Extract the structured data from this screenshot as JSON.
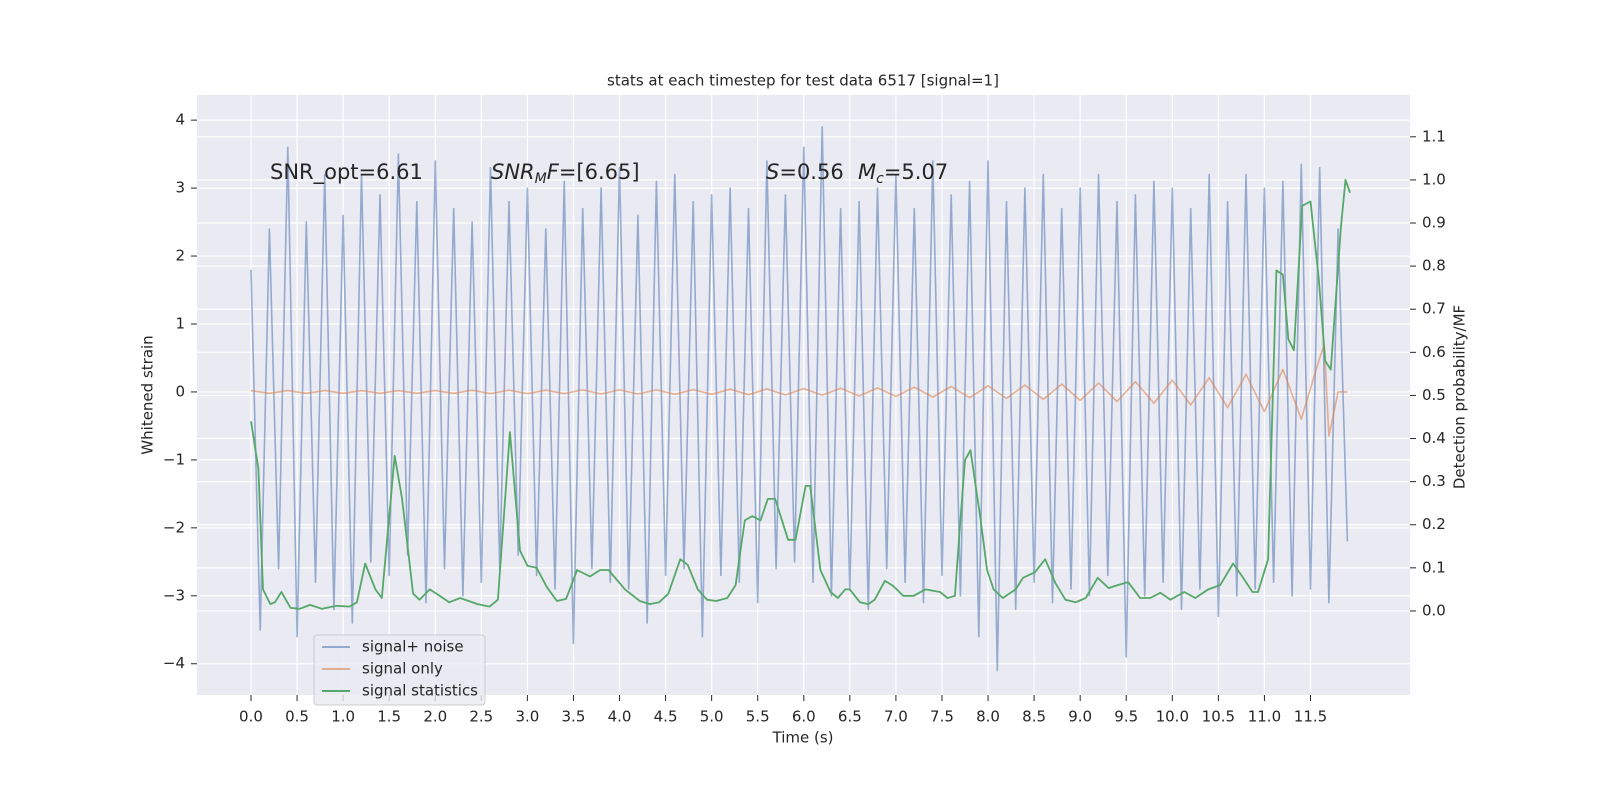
{
  "chart_data": {
    "type": "line",
    "title": "stats at each timestep for test data 6517 [signal=1]",
    "xlabel": "Time (s)",
    "ylabel": "Whitened strain",
    "y2label": "Detection probability/MF",
    "grid": true,
    "legend": "lower left",
    "annotations": [
      [
        "SNR_opt=6.61"
      ],
      [
        "SNR",
        "M",
        "F",
        "=[6.65]"
      ],
      [
        "S",
        "=0.56"
      ],
      [
        "M",
        "c",
        "=5.07"
      ]
    ],
    "xlim": [
      -0.586,
      12.58
    ],
    "ylim": [
      -4.46,
      4.37
    ],
    "y2lim": [
      -0.195,
      1.197
    ],
    "xticks": [
      {
        "value": 0,
        "label": "0.0"
      },
      0.5,
      {
        "value": 1,
        "label": "1.0"
      },
      1.5,
      {
        "value": 2,
        "label": "2.0"
      },
      2.5,
      {
        "value": 3,
        "label": "3.0"
      },
      3.5,
      {
        "value": 4,
        "label": "4.0"
      },
      4.5,
      {
        "value": 5,
        "label": "5.0"
      },
      5.5,
      {
        "value": 6,
        "label": "6.0"
      },
      6.5,
      {
        "value": 7,
        "label": "7.0"
      },
      7.5,
      {
        "value": 8,
        "label": "8.0"
      },
      8.5,
      {
        "value": 9,
        "label": "9.0"
      },
      9.5,
      {
        "value": 10,
        "label": "10.0"
      },
      10.5,
      {
        "value": 11,
        "label": "11.0"
      },
      11.5
    ],
    "yticks": [
      {
        "value": -4,
        "label": "−4"
      },
      {
        "value": -3,
        "label": "−3"
      },
      {
        "value": -2,
        "label": "−2"
      },
      {
        "value": -1,
        "label": "−1"
      },
      0,
      1,
      2,
      3,
      4
    ],
    "y2ticks": [
      {
        "value": 0,
        "label": "0.0"
      },
      0.1,
      0.2,
      0.3,
      0.4,
      0.5,
      0.6,
      0.7,
      0.8,
      0.9,
      {
        "value": 1,
        "label": "1.0"
      },
      1.1
    ],
    "series": [
      {
        "name": "signal+ noise",
        "color": "#4c72b0",
        "x": [
          0.0,
          0.1,
          0.2,
          0.3,
          0.4,
          0.5,
          0.6,
          0.7,
          0.8,
          0.9,
          1.0,
          1.1,
          1.2,
          1.3,
          1.4,
          1.5,
          1.6,
          1.7,
          1.8,
          1.9,
          2.0,
          2.1,
          2.2,
          2.3,
          2.4,
          2.5,
          2.6,
          2.7,
          2.8,
          2.9,
          3.0,
          3.1,
          3.2,
          3.3,
          3.4,
          3.5,
          3.6,
          3.7,
          3.8,
          3.9,
          4.0,
          4.1,
          4.2,
          4.3,
          4.4,
          4.5,
          4.6,
          4.7,
          4.8,
          4.9,
          5.0,
          5.1,
          5.2,
          5.3,
          5.4,
          5.5,
          5.6,
          5.7,
          5.8,
          5.9,
          6.0,
          6.1,
          6.2,
          6.3,
          6.4,
          6.5,
          6.6,
          6.7,
          6.8,
          6.9,
          7.0,
          7.1,
          7.2,
          7.3,
          7.4,
          7.5,
          7.6,
          7.7,
          7.8,
          7.9,
          8.0,
          8.1,
          8.2,
          8.3,
          8.4,
          8.5,
          8.6,
          8.7,
          8.8,
          8.9,
          9.0,
          9.1,
          9.2,
          9.3,
          9.4,
          9.5,
          9.6,
          9.7,
          9.8,
          9.9,
          10.0,
          10.1,
          10.2,
          10.3,
          10.4,
          10.5,
          10.6,
          10.7,
          10.8,
          10.9,
          11.0,
          11.1,
          11.2,
          11.3,
          11.4,
          11.5,
          11.6,
          11.7,
          11.8,
          11.9
        ],
        "values": [
          1.8,
          -3.5,
          2.4,
          -2.6,
          3.6,
          -3.6,
          2.5,
          -2.8,
          3.2,
          -3.2,
          2.6,
          -3.4,
          3.2,
          -2.5,
          2.9,
          -2.7,
          3.5,
          -2.4,
          2.8,
          -3.1,
          3.4,
          -2.6,
          2.7,
          -3.0,
          2.5,
          -2.8,
          3.3,
          -2.6,
          2.8,
          -2.4,
          3.0,
          -2.7,
          2.4,
          -2.9,
          3.1,
          -3.7,
          2.7,
          -2.6,
          3.0,
          -2.8,
          3.3,
          -2.9,
          2.6,
          -3.4,
          3.1,
          -2.7,
          3.2,
          -2.6,
          2.8,
          -3.6,
          2.9,
          -2.7,
          3.0,
          -2.8,
          2.7,
          -3.1,
          3.4,
          -2.6,
          2.9,
          -2.5,
          3.6,
          -2.8,
          3.9,
          -3.0,
          2.7,
          -2.9,
          2.8,
          -3.2,
          3.0,
          -2.6,
          3.2,
          -2.8,
          2.7,
          -3.1,
          3.4,
          -2.7,
          2.9,
          -3.0,
          3.1,
          -3.6,
          3.4,
          -4.1,
          2.8,
          -3.2,
          3.0,
          -2.8,
          3.2,
          -3.1,
          2.7,
          -2.9,
          3.0,
          -3.0,
          3.2,
          -2.7,
          2.8,
          -3.9,
          2.9,
          -3.0,
          3.1,
          -2.8,
          3.0,
          -3.2,
          2.7,
          -2.9,
          3.2,
          -3.3,
          2.8,
          -3.0,
          3.2,
          -2.9,
          3.0,
          -2.8,
          3.1,
          -3.0,
          3.35,
          -2.9,
          3.3,
          -3.1,
          2.4,
          -2.2
        ]
      },
      {
        "name": "signal only",
        "color": "#dd8452",
        "x": [
          0.0,
          0.2,
          0.4,
          0.6,
          0.8,
          1.0,
          1.2,
          1.4,
          1.6,
          1.8,
          2.0,
          2.2,
          2.4,
          2.6,
          2.8,
          3.0,
          3.2,
          3.4,
          3.6,
          3.8,
          4.0,
          4.2,
          4.4,
          4.6,
          4.8,
          5.0,
          5.2,
          5.4,
          5.6,
          5.8,
          6.0,
          6.2,
          6.4,
          6.6,
          6.8,
          7.0,
          7.2,
          7.4,
          7.6,
          7.8,
          8.0,
          8.2,
          8.4,
          8.6,
          8.8,
          9.0,
          9.2,
          9.4,
          9.6,
          9.8,
          10.0,
          10.2,
          10.4,
          10.6,
          10.8,
          11.0,
          11.2,
          11.4,
          11.6,
          11.65,
          11.7,
          11.8,
          11.9
        ],
        "values": [
          0.02,
          -0.02,
          0.02,
          -0.02,
          0.02,
          -0.02,
          0.02,
          -0.02,
          0.02,
          -0.02,
          0.02,
          -0.02,
          0.025,
          -0.025,
          0.025,
          -0.025,
          0.025,
          -0.025,
          0.03,
          -0.03,
          0.03,
          -0.03,
          0.03,
          -0.035,
          0.035,
          -0.035,
          0.04,
          -0.04,
          0.045,
          -0.045,
          0.05,
          -0.05,
          0.055,
          -0.06,
          0.06,
          -0.065,
          0.07,
          -0.075,
          0.08,
          -0.085,
          0.09,
          -0.095,
          0.1,
          -0.11,
          0.115,
          -0.125,
          0.13,
          -0.14,
          0.15,
          -0.165,
          0.175,
          -0.19,
          0.21,
          -0.23,
          0.26,
          -0.29,
          0.33,
          -0.4,
          0.5,
          0.7,
          -0.65,
          0.0,
          0.0
        ]
      },
      {
        "name": "signal statistics",
        "color": "#55a868",
        "axis": "y2",
        "x": [
          0,
          0.08,
          0.13,
          0.21,
          0.26,
          0.33,
          0.43,
          0.53,
          0.64,
          0.77,
          0.93,
          1.07,
          1.15,
          1.24,
          1.35,
          1.42,
          1.56,
          1.64,
          1.76,
          1.83,
          1.94,
          2.05,
          2.15,
          2.27,
          2.46,
          2.59,
          2.68,
          2.81,
          2.92,
          3.0,
          3.1,
          3.21,
          3.32,
          3.42,
          3.54,
          3.68,
          3.79,
          3.88,
          4.06,
          4.22,
          4.33,
          4.43,
          4.53,
          4.66,
          4.74,
          4.85,
          4.95,
          5.05,
          5.17,
          5.26,
          5.36,
          5.44,
          5.53,
          5.61,
          5.69,
          5.83,
          5.91,
          6.02,
          6.07,
          6.18,
          6.29,
          6.37,
          6.45,
          6.5,
          6.61,
          6.7,
          6.77,
          6.88,
          6.97,
          7.08,
          7.19,
          7.32,
          7.48,
          7.56,
          7.64,
          7.7,
          7.75,
          7.81,
          7.92,
          7.99,
          8.06,
          8.16,
          8.3,
          8.38,
          8.51,
          8.62,
          8.73,
          8.84,
          8.95,
          9.06,
          9.19,
          9.31,
          9.38,
          9.52,
          9.65,
          9.76,
          9.87,
          9.98,
          10.13,
          10.25,
          10.39,
          10.52,
          10.66,
          10.76,
          10.87,
          10.93,
          11.04,
          11.13,
          11.2,
          11.26,
          11.32,
          11.41,
          11.5,
          11.59,
          11.66,
          11.72,
          11.83,
          11.88,
          11.93
        ],
        "values": [
          0.44,
          0.33,
          0.05,
          0.016,
          0.02,
          0.044,
          0.007,
          0.005,
          0.014,
          0.005,
          0.012,
          0.01,
          0.02,
          0.11,
          0.05,
          0.03,
          0.36,
          0.26,
          0.04,
          0.026,
          0.05,
          0.035,
          0.02,
          0.03,
          0.016,
          0.01,
          0.026,
          0.415,
          0.14,
          0.105,
          0.1,
          0.056,
          0.023,
          0.028,
          0.095,
          0.08,
          0.095,
          0.095,
          0.05,
          0.023,
          0.016,
          0.02,
          0.04,
          0.12,
          0.107,
          0.05,
          0.026,
          0.023,
          0.03,
          0.06,
          0.21,
          0.22,
          0.21,
          0.26,
          0.26,
          0.165,
          0.165,
          0.29,
          0.29,
          0.095,
          0.044,
          0.03,
          0.05,
          0.05,
          0.02,
          0.016,
          0.026,
          0.07,
          0.058,
          0.035,
          0.035,
          0.05,
          0.044,
          0.03,
          0.035,
          0.21,
          0.35,
          0.373,
          0.21,
          0.095,
          0.05,
          0.03,
          0.05,
          0.077,
          0.09,
          0.12,
          0.065,
          0.026,
          0.02,
          0.03,
          0.077,
          0.053,
          0.058,
          0.067,
          0.03,
          0.03,
          0.042,
          0.026,
          0.044,
          0.03,
          0.05,
          0.06,
          0.11,
          0.08,
          0.044,
          0.044,
          0.12,
          0.79,
          0.78,
          0.63,
          0.605,
          0.94,
          0.95,
          0.77,
          0.58,
          0.56,
          0.89,
          1.0,
          0.97
        ]
      }
    ]
  }
}
